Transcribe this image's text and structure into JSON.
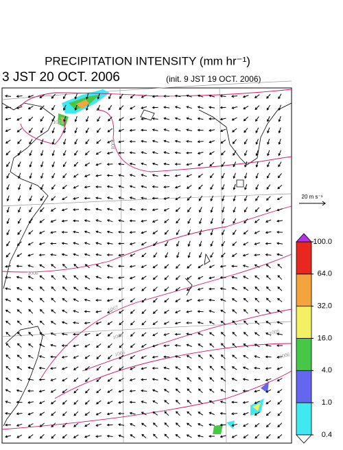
{
  "header": {
    "title": "PRECIPITATION INTENSITY (mm hr⁻¹)",
    "valid_time": "3 JST 20 OCT. 2006",
    "init_time": "(init. 9 JST 19 OCT. 2006)"
  },
  "reference_vector": {
    "label": "20 m s⁻¹"
  },
  "isobar_labels": [
    "1009",
    "1008",
    "1008",
    "1007",
    "1006",
    "1005",
    "1006",
    "1006"
  ],
  "colorbar": {
    "levels": [
      {
        "value": 0.4,
        "label": "0.4"
      },
      {
        "value": 1,
        "label": "1.0"
      },
      {
        "value": 4,
        "label": "4.0"
      },
      {
        "value": 16,
        "label": "16.0"
      },
      {
        "value": 32,
        "label": "32.0"
      },
      {
        "value": 64,
        "label": "64.0"
      },
      {
        "value": 100,
        "label": "100.0"
      }
    ],
    "colors": [
      "#40e8f0",
      "#6466f0",
      "#46c846",
      "#f4f064",
      "#f4a43c",
      "#e8281e"
    ],
    "under_color": "#ffffff",
    "over_color": "#b432e6"
  }
}
